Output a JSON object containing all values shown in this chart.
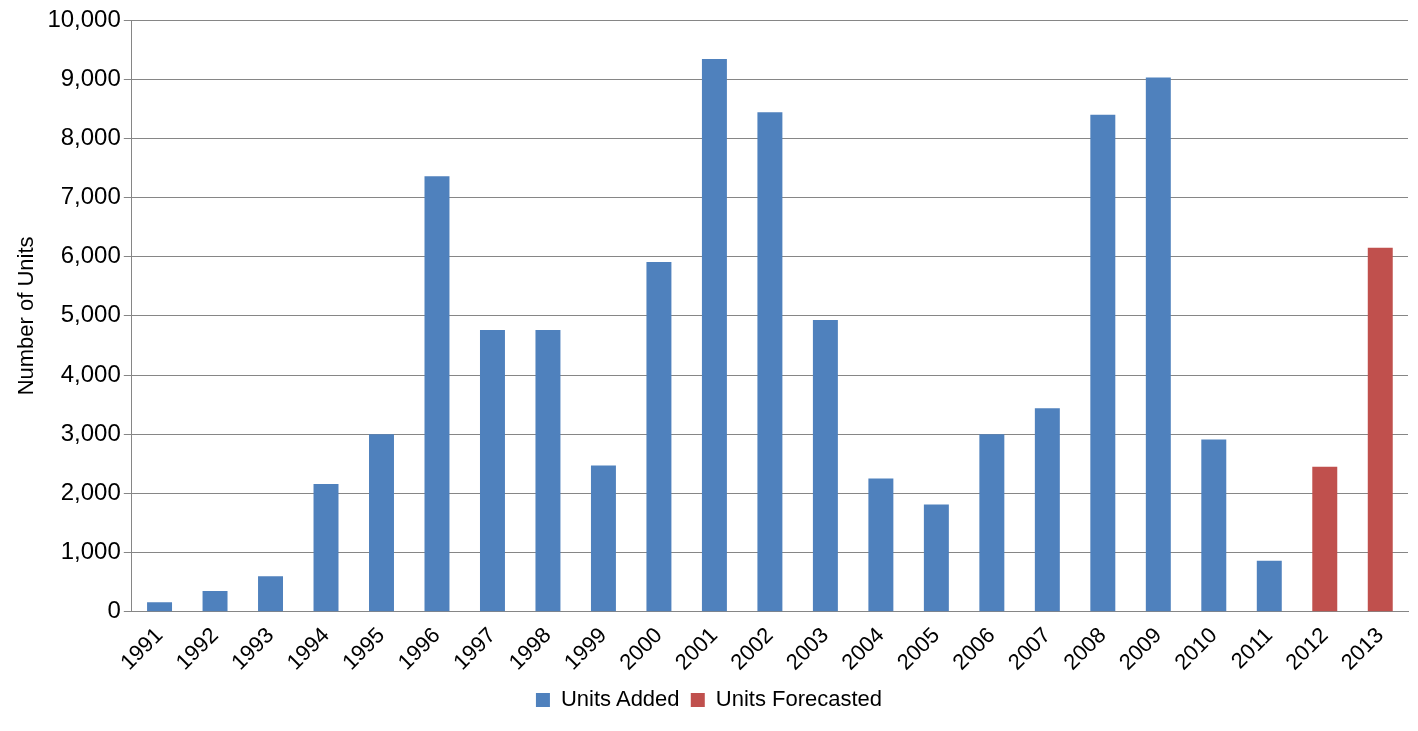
{
  "chart_data": {
    "type": "bar",
    "ylabel": "Number of Units",
    "categories": [
      "1991",
      "1992",
      "1993",
      "1994",
      "1995",
      "1996",
      "1997",
      "1998",
      "1999",
      "2000",
      "2001",
      "2002",
      "2003",
      "2004",
      "2005",
      "2006",
      "2007",
      "2008",
      "2009",
      "2010",
      "2011",
      "2012",
      "2013"
    ],
    "series": [
      {
        "name": "Units Added",
        "color": "#4f81bd",
        "values": [
          160,
          350,
          600,
          2160,
          3000,
          7360,
          4760,
          4760,
          2470,
          5910,
          9340,
          8440,
          4930,
          2250,
          1810,
          3000,
          3440,
          8400,
          9030,
          2910,
          860,
          null,
          null
        ]
      },
      {
        "name": "Units Forecasted",
        "color": "#c0504d",
        "values": [
          null,
          null,
          null,
          null,
          null,
          null,
          null,
          null,
          null,
          null,
          null,
          null,
          null,
          null,
          null,
          null,
          null,
          null,
          null,
          null,
          null,
          2450,
          6150
        ]
      }
    ],
    "ylim": [
      0,
      10000
    ],
    "yticks": [
      0,
      {
        "value": 1000,
        "label": "1,000"
      },
      {
        "value": 2000,
        "label": "2,000"
      },
      {
        "value": 3000,
        "label": "3,000"
      },
      {
        "value": 4000,
        "label": "4,000"
      },
      {
        "value": 5000,
        "label": "5,000"
      },
      {
        "value": 6000,
        "label": "6,000"
      },
      {
        "value": 7000,
        "label": "7,000"
      },
      {
        "value": 8000,
        "label": "8,000"
      },
      {
        "value": 9000,
        "label": "9,000"
      },
      {
        "value": 10000,
        "label": "10,000"
      }
    ],
    "grid": "y",
    "legend": "bottom"
  }
}
